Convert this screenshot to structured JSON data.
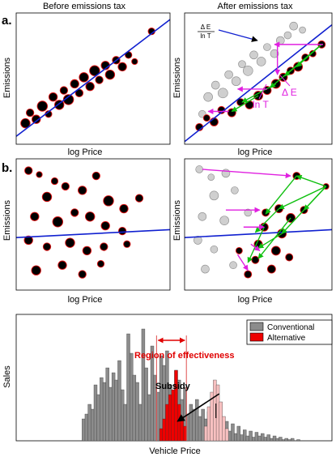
{
  "colors": {
    "bubble_fill": "#000000",
    "bubble_stroke": "#e01010",
    "ghost_fill": "#cfcfcf",
    "ghost_stroke": "#8a8a8a",
    "trend_line": "#1020d0",
    "arrow_magenta": "#e020e0",
    "arrow_green": "#10c010",
    "hist_conventional": "#8c8c8c",
    "hist_alternative": "#ee0000",
    "hist_alternative_shifted": "#f7c0c0",
    "region_lines": "#e05050"
  },
  "panel_labels": {
    "a": "a.",
    "b": "b."
  },
  "headers": {
    "left": "Before emissions tax",
    "right": "After emissions tax"
  },
  "axes": {
    "ylabel_emissions": "Emissions",
    "xlabel_logprice": "log Price",
    "ylabel_sales": "Sales",
    "xlabel_vehicle": "Vehicle Price"
  },
  "annotations": {
    "ratio_num": "Δ E",
    "ratio_den": "ln T",
    "lnT": "ln T",
    "dE": "Δ E",
    "region": "Region of effectiveness",
    "subsidy": "Subsidy"
  },
  "legend": {
    "conventional": "Conventional",
    "alternative": "Alternative"
  },
  "chart_data": [
    {
      "panel": "a-left",
      "type": "scatter",
      "title": "Before emissions tax",
      "xlabel": "log Price",
      "ylabel": "Emissions",
      "xlim": [
        0,
        10
      ],
      "ylim": [
        0,
        10
      ],
      "trend_line": [
        [
          0,
          0.6
        ],
        [
          10,
          9.5
        ]
      ],
      "points": [
        {
          "x": 0.6,
          "y": 1.6,
          "r": 0.55
        },
        {
          "x": 0.9,
          "y": 2.4,
          "r": 0.45
        },
        {
          "x": 1.3,
          "y": 1.9,
          "r": 0.5
        },
        {
          "x": 1.7,
          "y": 2.9,
          "r": 0.6
        },
        {
          "x": 2.1,
          "y": 2.3,
          "r": 0.4
        },
        {
          "x": 2.4,
          "y": 3.6,
          "r": 0.5
        },
        {
          "x": 2.8,
          "y": 3.0,
          "r": 0.55
        },
        {
          "x": 3.1,
          "y": 4.1,
          "r": 0.45
        },
        {
          "x": 3.4,
          "y": 3.4,
          "r": 0.6
        },
        {
          "x": 3.8,
          "y": 4.6,
          "r": 0.5
        },
        {
          "x": 4.1,
          "y": 3.9,
          "r": 0.45
        },
        {
          "x": 4.4,
          "y": 5.1,
          "r": 0.55
        },
        {
          "x": 4.8,
          "y": 4.4,
          "r": 0.5
        },
        {
          "x": 5.1,
          "y": 5.6,
          "r": 0.6
        },
        {
          "x": 5.4,
          "y": 4.9,
          "r": 0.45
        },
        {
          "x": 5.8,
          "y": 6.0,
          "r": 0.5
        },
        {
          "x": 6.1,
          "y": 5.3,
          "r": 0.55
        },
        {
          "x": 6.5,
          "y": 6.4,
          "r": 0.45
        },
        {
          "x": 6.9,
          "y": 5.9,
          "r": 0.5
        },
        {
          "x": 7.3,
          "y": 6.8,
          "r": 0.4
        },
        {
          "x": 7.7,
          "y": 6.3,
          "r": 0.35
        },
        {
          "x": 8.8,
          "y": 8.6,
          "r": 0.4
        }
      ]
    },
    {
      "panel": "a-right",
      "type": "scatter",
      "title": "After emissions tax",
      "xlabel": "log Price",
      "ylabel": "Emissions",
      "xlim": [
        0,
        10
      ],
      "ylim": [
        0,
        10
      ],
      "trend_line": [
        [
          0,
          0.2
        ],
        [
          10,
          9.1
        ]
      ],
      "ghost_points": [
        {
          "x": 1.6,
          "y": 3.6,
          "r": 0.55
        },
        {
          "x": 2.1,
          "y": 4.5,
          "r": 0.5
        },
        {
          "x": 2.6,
          "y": 3.9,
          "r": 0.6
        },
        {
          "x": 3.0,
          "y": 5.3,
          "r": 0.5
        },
        {
          "x": 3.5,
          "y": 4.8,
          "r": 0.55
        },
        {
          "x": 3.9,
          "y": 6.1,
          "r": 0.45
        },
        {
          "x": 4.3,
          "y": 5.6,
          "r": 0.6
        },
        {
          "x": 4.7,
          "y": 6.8,
          "r": 0.5
        },
        {
          "x": 5.2,
          "y": 6.3,
          "r": 0.55
        },
        {
          "x": 5.6,
          "y": 7.4,
          "r": 0.45
        },
        {
          "x": 6.1,
          "y": 6.9,
          "r": 0.5
        },
        {
          "x": 6.5,
          "y": 7.9,
          "r": 0.5
        },
        {
          "x": 7.0,
          "y": 8.3,
          "r": 0.45
        },
        {
          "x": 7.4,
          "y": 9.0,
          "r": 0.5
        },
        {
          "x": 8.0,
          "y": 8.7,
          "r": 0.4
        },
        {
          "x": 1.2,
          "y": 2.3,
          "r": 0.45
        }
      ],
      "points": [
        {
          "x": 1.0,
          "y": 1.3,
          "r": 0.45
        },
        {
          "x": 1.5,
          "y": 2.0,
          "r": 0.4
        },
        {
          "x": 2.0,
          "y": 1.7,
          "r": 0.5
        },
        {
          "x": 2.5,
          "y": 2.6,
          "r": 0.45
        },
        {
          "x": 3.2,
          "y": 2.4,
          "r": 0.5
        },
        {
          "x": 3.8,
          "y": 3.2,
          "r": 0.45
        },
        {
          "x": 4.4,
          "y": 3.0,
          "r": 0.5
        },
        {
          "x": 5.0,
          "y": 3.7,
          "r": 0.55
        },
        {
          "x": 5.6,
          "y": 4.1,
          "r": 0.5
        },
        {
          "x": 6.2,
          "y": 4.6,
          "r": 0.55
        },
        {
          "x": 6.7,
          "y": 5.1,
          "r": 0.5
        },
        {
          "x": 7.2,
          "y": 5.6,
          "r": 0.45
        },
        {
          "x": 7.7,
          "y": 5.9,
          "r": 0.55
        },
        {
          "x": 8.2,
          "y": 6.6,
          "r": 0.45
        },
        {
          "x": 8.7,
          "y": 6.9,
          "r": 0.4
        },
        {
          "x": 9.3,
          "y": 7.6,
          "r": 0.45
        }
      ],
      "magenta_arrows": [
        {
          "from": [
            9.4,
            7.6
          ],
          "to": [
            6.1,
            7.6
          ]
        },
        {
          "from": [
            6.3,
            7.6
          ],
          "to": [
            6.3,
            5.3
          ]
        },
        {
          "from": [
            5.6,
            4.2
          ],
          "to": [
            3.6,
            4.2
          ]
        },
        {
          "from": [
            3.0,
            2.5
          ],
          "to": [
            1.6,
            2.5
          ]
        }
      ],
      "green_arrows": [
        {
          "from": [
            9.3,
            7.6
          ],
          "to": [
            6.8,
            5.2
          ]
        },
        {
          "from": [
            9.3,
            7.6
          ],
          "to": [
            5.8,
            4.3
          ]
        },
        {
          "from": [
            9.3,
            7.6
          ],
          "to": [
            7.6,
            5.9
          ]
        },
        {
          "from": [
            6.2,
            4.6
          ],
          "to": [
            3.9,
            3.2
          ]
        },
        {
          "from": [
            5.0,
            3.7
          ],
          "to": [
            3.2,
            2.5
          ]
        }
      ]
    },
    {
      "panel": "b-left",
      "type": "scatter",
      "xlabel": "log Price",
      "ylabel": "Emissions",
      "xlim": [
        0,
        10
      ],
      "ylim": [
        0,
        10
      ],
      "trend_line": [
        [
          0,
          4.0
        ],
        [
          10,
          4.6
        ]
      ],
      "points": [
        {
          "x": 0.8,
          "y": 9.1,
          "r": 0.45
        },
        {
          "x": 1.5,
          "y": 8.8,
          "r": 0.35
        },
        {
          "x": 2.5,
          "y": 8.3,
          "r": 0.4
        },
        {
          "x": 3.2,
          "y": 7.9,
          "r": 0.45
        },
        {
          "x": 2.0,
          "y": 7.1,
          "r": 0.55
        },
        {
          "x": 4.3,
          "y": 7.6,
          "r": 0.5
        },
        {
          "x": 5.2,
          "y": 8.7,
          "r": 0.45
        },
        {
          "x": 6.0,
          "y": 6.8,
          "r": 0.6
        },
        {
          "x": 7.0,
          "y": 6.2,
          "r": 0.5
        },
        {
          "x": 8.0,
          "y": 7.0,
          "r": 0.45
        },
        {
          "x": 1.2,
          "y": 5.6,
          "r": 0.5
        },
        {
          "x": 2.7,
          "y": 5.2,
          "r": 0.6
        },
        {
          "x": 3.8,
          "y": 5.9,
          "r": 0.45
        },
        {
          "x": 4.8,
          "y": 5.6,
          "r": 0.55
        },
        {
          "x": 5.8,
          "y": 4.9,
          "r": 0.5
        },
        {
          "x": 6.9,
          "y": 4.5,
          "r": 0.45
        },
        {
          "x": 0.8,
          "y": 3.8,
          "r": 0.5
        },
        {
          "x": 2.0,
          "y": 3.3,
          "r": 0.45
        },
        {
          "x": 3.5,
          "y": 3.6,
          "r": 0.55
        },
        {
          "x": 4.6,
          "y": 3.0,
          "r": 0.5
        },
        {
          "x": 5.7,
          "y": 3.3,
          "r": 0.45
        },
        {
          "x": 7.2,
          "y": 3.5,
          "r": 0.4
        },
        {
          "x": 1.3,
          "y": 1.5,
          "r": 0.55
        },
        {
          "x": 3.0,
          "y": 1.9,
          "r": 0.5
        },
        {
          "x": 4.3,
          "y": 1.2,
          "r": 0.45
        },
        {
          "x": 5.5,
          "y": 2.0,
          "r": 0.4
        }
      ]
    },
    {
      "panel": "b-right",
      "type": "scatter",
      "xlabel": "log Price",
      "ylabel": "Emissions",
      "xlim": [
        0,
        10
      ],
      "ylim": [
        0,
        10
      ],
      "trend_line": [
        [
          0,
          4.0
        ],
        [
          10,
          4.6
        ]
      ],
      "ghost_points": [
        {
          "x": 1.0,
          "y": 9.2,
          "r": 0.45
        },
        {
          "x": 1.8,
          "y": 8.6,
          "r": 0.4
        },
        {
          "x": 2.8,
          "y": 8.9,
          "r": 0.5
        },
        {
          "x": 2.0,
          "y": 7.2,
          "r": 0.55
        },
        {
          "x": 3.4,
          "y": 7.6,
          "r": 0.45
        },
        {
          "x": 1.2,
          "y": 5.6,
          "r": 0.5
        },
        {
          "x": 2.7,
          "y": 5.3,
          "r": 0.55
        },
        {
          "x": 0.9,
          "y": 3.8,
          "r": 0.5
        },
        {
          "x": 2.0,
          "y": 3.1,
          "r": 0.45
        },
        {
          "x": 1.4,
          "y": 1.6,
          "r": 0.5
        },
        {
          "x": 3.3,
          "y": 1.9,
          "r": 0.45
        },
        {
          "x": 4.3,
          "y": 5.9,
          "r": 0.45
        }
      ],
      "points": [
        {
          "x": 7.6,
          "y": 8.7,
          "r": 0.45
        },
        {
          "x": 9.6,
          "y": 7.9,
          "r": 0.35
        },
        {
          "x": 6.4,
          "y": 6.2,
          "r": 0.5
        },
        {
          "x": 7.2,
          "y": 5.5,
          "r": 0.55
        },
        {
          "x": 8.1,
          "y": 6.1,
          "r": 0.45
        },
        {
          "x": 5.4,
          "y": 4.8,
          "r": 0.5
        },
        {
          "x": 6.6,
          "y": 4.3,
          "r": 0.55
        },
        {
          "x": 5.0,
          "y": 3.5,
          "r": 0.5
        },
        {
          "x": 6.2,
          "y": 3.0,
          "r": 0.55
        },
        {
          "x": 7.1,
          "y": 2.5,
          "r": 0.45
        },
        {
          "x": 4.8,
          "y": 2.3,
          "r": 0.45
        },
        {
          "x": 5.9,
          "y": 1.6,
          "r": 0.5
        },
        {
          "x": 4.3,
          "y": 1.2,
          "r": 0.45
        },
        {
          "x": 3.7,
          "y": 3.0,
          "r": 0.4
        },
        {
          "x": 5.5,
          "y": 5.9,
          "r": 0.45
        }
      ],
      "magenta_arrows": [
        {
          "from": [
            1.2,
            9.2
          ],
          "to": [
            7.2,
            8.7
          ]
        },
        {
          "from": [
            2.8,
            6.1
          ],
          "to": [
            5.1,
            6.1
          ]
        },
        {
          "from": [
            4.0,
            4.8
          ],
          "to": [
            5.4,
            4.8
          ]
        },
        {
          "from": [
            4.5,
            3.5
          ],
          "to": [
            5.1,
            3.0
          ]
        },
        {
          "from": [
            3.6,
            2.7
          ],
          "to": [
            4.3,
            1.5
          ]
        }
      ],
      "green_arrows": [
        {
          "from": [
            9.6,
            7.9
          ],
          "to": [
            7.6,
            8.7
          ]
        },
        {
          "from": [
            9.6,
            7.9
          ],
          "to": [
            6.4,
            6.2
          ]
        },
        {
          "from": [
            9.6,
            7.9
          ],
          "to": [
            6.6,
            4.3
          ]
        },
        {
          "from": [
            9.6,
            7.9
          ],
          "to": [
            8.1,
            6.1
          ]
        },
        {
          "from": [
            7.6,
            8.7
          ],
          "to": [
            5.5,
            5.8
          ]
        },
        {
          "from": [
            6.4,
            6.2
          ],
          "to": [
            4.8,
            4.4
          ]
        },
        {
          "from": [
            6.6,
            4.3
          ],
          "to": [
            5.0,
            3.2
          ]
        },
        {
          "from": [
            7.2,
            5.5
          ],
          "to": [
            5.0,
            2.4
          ]
        },
        {
          "from": [
            5.4,
            4.8
          ],
          "to": [
            4.3,
            2.1
          ]
        }
      ]
    },
    {
      "panel": "c",
      "type": "bar",
      "xlabel": "Vehicle Price",
      "ylabel": "Sales",
      "ylim": [
        0,
        100
      ],
      "legend": "top-right",
      "series": [
        {
          "name": "Conventional",
          "values": [
            0,
            0,
            0,
            0,
            0,
            0,
            0,
            0,
            0,
            0,
            0,
            0,
            0,
            0,
            0,
            18,
            22,
            30,
            26,
            46,
            38,
            52,
            48,
            60,
            44,
            56,
            50,
            66,
            42,
            30,
            88,
            72,
            54,
            48,
            30,
            92,
            60,
            38,
            78,
            54,
            40,
            70,
            62,
            74,
            46,
            38,
            58,
            50,
            34,
            44,
            22,
            30,
            26,
            34,
            20,
            26,
            18,
            24,
            14,
            20,
            12,
            18,
            10,
            16,
            8,
            14,
            6,
            12,
            5,
            9,
            4,
            8,
            3,
            7,
            4,
            6,
            3,
            5,
            2,
            4,
            2,
            3,
            1,
            2,
            1,
            2,
            0,
            1,
            0,
            0,
            0,
            0,
            0,
            0,
            0
          ]
        },
        {
          "name": "Alternative",
          "values": [
            0,
            0,
            0,
            0,
            0,
            0,
            0,
            0,
            0,
            0,
            0,
            0,
            0,
            0,
            0,
            0,
            0,
            0,
            0,
            0,
            0,
            0,
            0,
            0,
            0,
            0,
            0,
            0,
            0,
            0,
            0,
            0,
            0,
            0,
            0,
            0,
            0,
            0,
            0,
            0,
            0,
            10,
            18,
            30,
            38,
            42,
            58,
            30,
            20,
            12,
            0,
            0,
            0,
            0,
            0,
            0,
            0,
            0,
            0,
            0,
            0,
            0,
            0,
            0,
            0,
            0,
            0,
            0,
            0,
            0,
            0,
            0,
            0,
            0,
            0,
            0,
            0,
            0,
            0,
            0,
            0,
            0,
            0,
            0,
            0,
            0,
            0,
            0,
            0,
            0,
            0,
            0,
            0,
            0,
            0
          ]
        },
        {
          "values": [
            0,
            0,
            0,
            0,
            0,
            0,
            0,
            0,
            0,
            0,
            0,
            0,
            0,
            0,
            0,
            0,
            0,
            0,
            0,
            0,
            0,
            0,
            0,
            0,
            0,
            0,
            0,
            0,
            0,
            0,
            0,
            0,
            0,
            0,
            0,
            0,
            0,
            0,
            0,
            0,
            0,
            0,
            0,
            0,
            0,
            0,
            0,
            0,
            0,
            0,
            0,
            0,
            0,
            0,
            0,
            0,
            12,
            28,
            40,
            50,
            46,
            32,
            20,
            10,
            0,
            0,
            0,
            0,
            0,
            0,
            0,
            0,
            0,
            0,
            0,
            0,
            0,
            0,
            0,
            0,
            0,
            0,
            0,
            0,
            0,
            0,
            0,
            0,
            0,
            0,
            0,
            0,
            0,
            0,
            0
          ]
        }
      ],
      "region_of_effectiveness": {
        "from_bin": 40,
        "to_bin": 50
      },
      "subsidy_arrow": {
        "from_bin": 61,
        "to_bin": 46
      }
    }
  ]
}
